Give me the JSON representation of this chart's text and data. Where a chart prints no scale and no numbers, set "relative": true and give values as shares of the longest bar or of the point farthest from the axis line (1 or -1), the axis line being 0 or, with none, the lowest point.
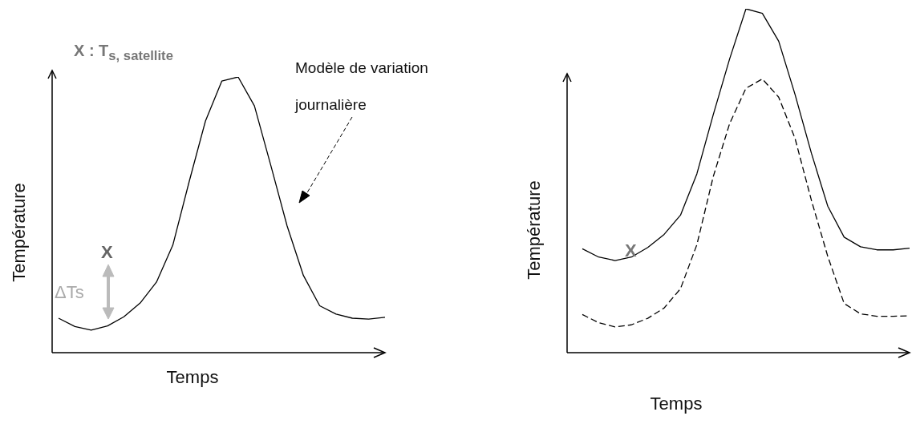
{
  "chart_data": [
    {
      "type": "line",
      "relative": true,
      "marker": "none",
      "xlabel": "Temps",
      "ylabel": "Température",
      "categories": [
        null,
        null,
        null,
        null,
        null,
        null,
        null,
        null,
        null,
        null,
        null,
        null,
        null,
        null,
        null,
        null,
        null,
        null,
        null,
        null,
        null
      ],
      "series": [
        {
          "color": "#000000",
          "line_style": "solid",
          "values": [
            0.125,
            0.095,
            0.082,
            0.097,
            0.13,
            0.18,
            0.256,
            0.39,
            0.62,
            0.84,
            0.985,
            1,
            0.895,
            0.68,
            0.46,
            0.28,
            0.17,
            0.14,
            0.125,
            0.122,
            0.128
          ]
        }
      ],
      "annotations": [
        "X : T$_{s, satellite}$",
        "Modèle de variation journalière",
        "X",
        "ΔTs"
      ]
    },
    {
      "type": "line",
      "relative": true,
      "marker": "none",
      "xlabel": "Temps",
      "ylabel": "Température",
      "categories": [
        null,
        null,
        null,
        null,
        null,
        null,
        null,
        null,
        null,
        null,
        null,
        null,
        null,
        null,
        null,
        null,
        null,
        null,
        null,
        null,
        null
      ],
      "series": [
        {
          "color": "#000000",
          "line_style": "solid",
          "values": [
            0.302,
            0.278,
            0.268,
            0.278,
            0.306,
            0.344,
            0.4,
            0.52,
            0.692,
            0.854,
            1,
            0.987,
            0.906,
            0.751,
            0.58,
            0.426,
            0.336,
            0.308,
            0.299,
            0.299,
            0.304
          ]
        },
        {
          "color": "#000000",
          "line_style": "dashed",
          "values": [
            0.111,
            0.087,
            0.075,
            0.081,
            0.1,
            0.13,
            0.186,
            0.314,
            0.512,
            0.666,
            0.769,
            0.796,
            0.743,
            0.623,
            0.443,
            0.28,
            0.143,
            0.113,
            0.106,
            0.106,
            0.107
          ]
        }
      ],
      "annotations": [
        "X"
      ]
    }
  ]
}
